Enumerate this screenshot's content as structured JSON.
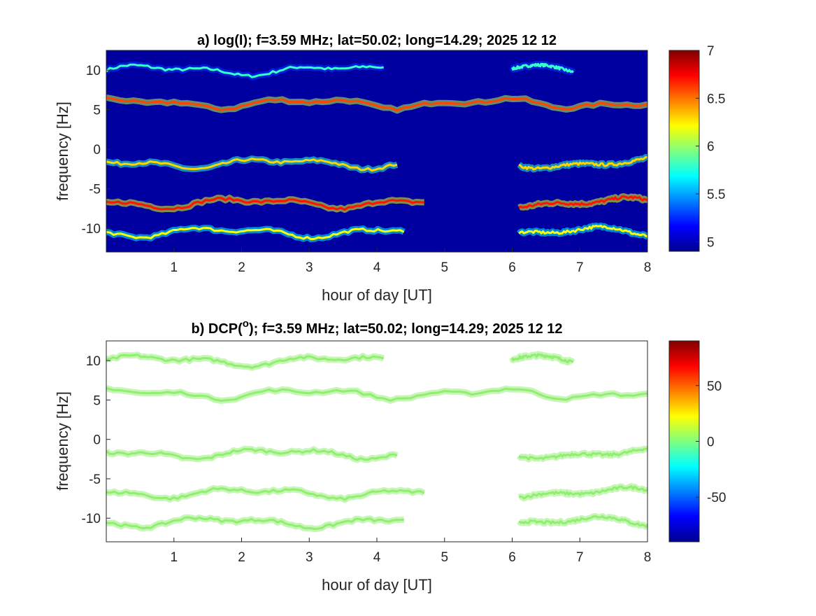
{
  "chart_data": [
    {
      "type": "heatmap",
      "title": "a) log(I); f=3.59 MHz;  lat=50.02; long=14.29; 2025 12 12",
      "xlabel": "hour of day [UT]",
      "ylabel": "frequency [Hz]",
      "xlim": [
        0,
        8
      ],
      "ylim": [
        -13,
        12.5
      ],
      "xticks": [
        1,
        2,
        3,
        4,
        5,
        6,
        7,
        8
      ],
      "yticks": [
        -10,
        -5,
        0,
        5,
        10
      ],
      "background": "#0000a0",
      "colorbar": {
        "range": [
          4.9,
          7
        ],
        "ticks": [
          "5",
          "5.5",
          "6",
          "6.5",
          "7"
        ],
        "tick_values": [
          5,
          5.5,
          6,
          6.5,
          7
        ]
      },
      "bands": [
        {
          "name": "",
          "level": 10,
          "segments": [
            [
              0,
              4.1
            ],
            [
              6.0,
              6.9
            ]
          ],
          "intensity": 5.8
        },
        {
          "name": "",
          "level": 5.8,
          "segments": [
            [
              0,
              8
            ]
          ],
          "intensity": 6.6
        },
        {
          "name": "",
          "level": -1.8,
          "segments": [
            [
              0,
              4.3
            ],
            [
              6.1,
              8
            ]
          ],
          "intensity": 6.3
        },
        {
          "name": "",
          "level": -6.8,
          "segments": [
            [
              0,
              4.7
            ],
            [
              6.1,
              8
            ]
          ],
          "intensity": 6.7
        },
        {
          "name": "",
          "level": -10.5,
          "segments": [
            [
              0,
              4.4
            ],
            [
              6.1,
              8
            ]
          ],
          "intensity": 6.2
        }
      ]
    },
    {
      "type": "heatmap",
      "title_prefix": "b) DCP(",
      "title_sup": "o",
      "title_suffix": "); f=3.59 MHz;  lat=50.02; long=14.29; 2025 12 12",
      "xlabel": "hour of day [UT]",
      "ylabel": "frequency [Hz]",
      "xlim": [
        0,
        8
      ],
      "ylim": [
        -13,
        12.5
      ],
      "xticks": [
        1,
        2,
        3,
        4,
        5,
        6,
        7,
        8
      ],
      "yticks": [
        -10,
        -5,
        0,
        5,
        10
      ],
      "background": "#ffffff",
      "band_color": "#90ee70",
      "colorbar": {
        "range": [
          -90,
          90
        ],
        "ticks": [
          "-50",
          "0",
          "50"
        ],
        "tick_values": [
          -50,
          0,
          50
        ]
      },
      "bands": [
        {
          "name": "",
          "level": 10,
          "segments": [
            [
              0,
              4.1
            ],
            [
              6.0,
              6.9
            ]
          ]
        },
        {
          "name": "",
          "level": 5.8,
          "segments": [
            [
              0,
              8
            ]
          ]
        },
        {
          "name": "",
          "level": -1.8,
          "segments": [
            [
              0,
              4.3
            ],
            [
              6.1,
              8
            ]
          ]
        },
        {
          "name": "",
          "level": -6.8,
          "segments": [
            [
              0,
              4.7
            ],
            [
              6.1,
              8
            ]
          ]
        },
        {
          "name": "",
          "level": -10.5,
          "segments": [
            [
              0,
              4.4
            ],
            [
              6.1,
              8
            ]
          ]
        }
      ]
    }
  ]
}
